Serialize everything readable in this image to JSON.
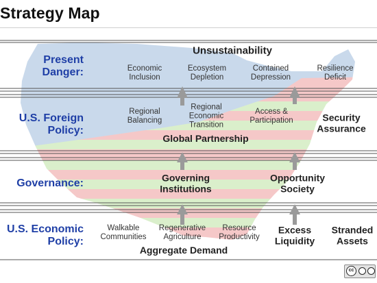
{
  "title": "Strategy Map",
  "colors": {
    "row_label": "#1f3fa6",
    "map_blue": "#c7d7ea",
    "map_red": "#f5c6c6",
    "map_green": "#d9efc9",
    "arrow_gray": "#9a9a9a",
    "band_line": "#555555"
  },
  "rows": [
    {
      "label": "Present\nDanger:",
      "header": "Unsustainability",
      "items": [
        "Economic\nInclusion",
        "Ecosystem\nDepletion",
        "Contained\nDepression",
        "Resilience\nDeficit"
      ]
    },
    {
      "label": "U.S. Foreign\nPolicy:",
      "footer": "Global Partnership",
      "items": [
        "Regional\nBalancing",
        "Regional\nEconomic\nTransition",
        "Access &\nParticipation",
        "Security\nAssurance"
      ]
    },
    {
      "label": "Governance:",
      "items": [
        "Governing\nInstitutions",
        "Opportunity\nSociety"
      ]
    },
    {
      "label": "U.S. Economic\nPolicy:",
      "footer": "Aggregate Demand",
      "items": [
        "Walkable\nCommunities",
        "Regenerative\nAgriculture",
        "Resource\nProductivity",
        "Excess\nLiquidity",
        "Stranded\nAssets"
      ]
    }
  ],
  "license_icon": "creative-commons-by-nd-badge"
}
